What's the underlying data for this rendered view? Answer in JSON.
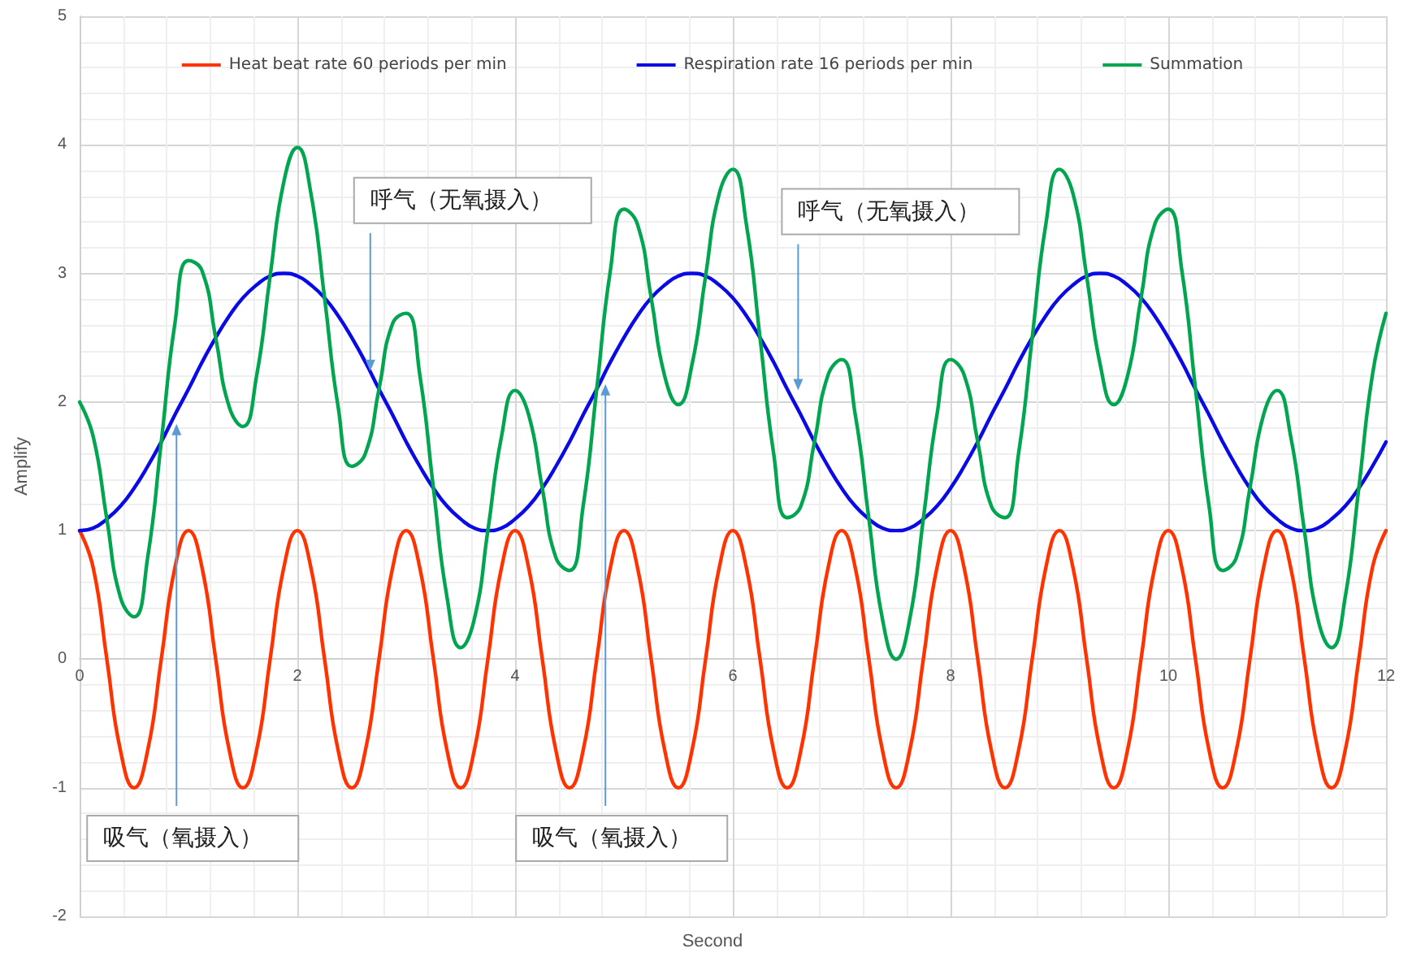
{
  "chart_data": {
    "type": "line",
    "xlabel": "Second",
    "ylabel": "Amplify",
    "x": [
      0,
      0.125,
      0.25,
      0.375,
      0.5,
      0.625,
      0.75,
      0.875,
      1,
      1.125,
      1.25,
      1.375,
      1.5,
      1.625,
      1.75,
      1.875,
      2,
      2.125,
      2.25,
      2.375,
      2.5,
      2.625,
      2.75,
      2.875,
      3,
      3.125,
      3.25,
      3.375,
      3.5,
      3.625,
      3.75,
      3.875,
      4,
      4.125,
      4.25,
      4.375,
      4.5,
      4.625,
      4.75,
      4.875,
      5,
      5.125,
      5.25,
      5.375,
      5.5,
      5.625,
      5.75,
      5.875,
      6,
      6.125,
      6.25,
      6.375,
      6.5,
      6.625,
      6.75,
      6.875,
      7,
      7.125,
      7.25,
      7.375,
      7.5,
      7.625,
      7.75,
      7.875,
      8,
      8.125,
      8.25,
      8.375,
      8.5,
      8.625,
      8.75,
      8.875,
      9,
      9.125,
      9.25,
      9.375,
      9.5,
      9.625,
      9.75,
      9.875,
      10,
      10.125,
      10.25,
      10.375,
      10.5,
      10.625,
      10.75,
      10.875,
      11,
      11.125,
      11.25,
      11.375,
      11.5,
      11.625,
      11.75,
      11.875,
      12
    ],
    "series": [
      {
        "name": "Heat beat rate 60 periods per min",
        "color": "#ff3300",
        "values": [
          1,
          0.71,
          0,
          -0.71,
          -1,
          -0.71,
          0,
          0.71,
          1,
          0.71,
          0,
          -0.71,
          -1,
          -0.71,
          0,
          0.71,
          1,
          0.71,
          0,
          -0.71,
          -1,
          -0.71,
          0,
          0.71,
          1,
          0.71,
          0,
          -0.71,
          -1,
          -0.71,
          0,
          0.71,
          1,
          0.71,
          0,
          -0.71,
          -1,
          -0.71,
          0,
          0.71,
          1,
          0.71,
          0,
          -0.71,
          -1,
          -0.71,
          0,
          0.71,
          1,
          0.71,
          0,
          -0.71,
          -1,
          -0.71,
          0,
          0.71,
          1,
          0.71,
          0,
          -0.71,
          -1,
          -0.71,
          0,
          0.71,
          1,
          0.71,
          0,
          -0.71,
          -1,
          -0.71,
          0,
          0.71,
          1,
          0.71,
          0,
          -0.71,
          -1,
          -0.71,
          0,
          0.71,
          1,
          0.71,
          0,
          -0.71,
          -1,
          -0.71,
          0,
          0.71,
          1,
          0.71,
          0,
          -0.71,
          -1,
          -0.71,
          0,
          0.71,
          1
        ]
      },
      {
        "name": "Respiration rate 16 periods per min",
        "color": "#0a0ae6",
        "values": [
          1,
          1.02,
          1.09,
          1.19,
          1.33,
          1.5,
          1.69,
          1.9,
          2.1,
          2.31,
          2.5,
          2.67,
          2.81,
          2.91,
          2.98,
          3,
          2.98,
          2.91,
          2.81,
          2.67,
          2.5,
          2.31,
          2.1,
          1.9,
          1.69,
          1.5,
          1.33,
          1.19,
          1.09,
          1.02,
          1,
          1.02,
          1.09,
          1.19,
          1.33,
          1.5,
          1.69,
          1.9,
          2.1,
          2.31,
          2.5,
          2.67,
          2.81,
          2.91,
          2.98,
          3,
          2.98,
          2.91,
          2.81,
          2.67,
          2.5,
          2.31,
          2.1,
          1.9,
          1.69,
          1.5,
          1.33,
          1.19,
          1.09,
          1.02,
          1,
          1.02,
          1.09,
          1.19,
          1.33,
          1.5,
          1.69,
          1.9,
          2.1,
          2.31,
          2.5,
          2.67,
          2.81,
          2.91,
          2.98,
          3,
          2.98,
          2.91,
          2.81,
          2.67,
          2.5,
          2.31,
          2.1,
          1.9,
          1.69,
          1.5,
          1.33,
          1.19,
          1.09,
          1.02,
          1,
          1.02,
          1.09,
          1.19,
          1.33,
          1.5,
          1.69
        ]
      },
      {
        "name": "Summation",
        "color": "#00a550",
        "values": [
          2,
          1.73,
          1.09,
          0.48,
          0.33,
          0.79,
          1.69,
          2.61,
          3.1,
          3.02,
          2.5,
          1.96,
          1.81,
          2.2,
          2.98,
          3.71,
          3.98,
          3.62,
          2.81,
          1.96,
          1.5,
          1.6,
          2.1,
          2.61,
          2.69,
          2.21,
          1.33,
          0.48,
          0.09,
          0.31,
          1,
          1.73,
          2.09,
          1.9,
          1.33,
          0.79,
          0.69,
          1.19,
          2.1,
          3.02,
          3.5,
          3.38,
          2.81,
          2.2,
          1.98,
          2.29,
          2.98,
          3.62,
          3.81,
          3.38,
          2.5,
          1.6,
          1.1,
          1.19,
          1.69,
          2.21,
          2.33,
          1.9,
          1.09,
          0.31,
          0,
          0.31,
          1.09,
          1.9,
          2.33,
          2.21,
          1.69,
          1.19,
          1.1,
          1.6,
          2.5,
          3.38,
          3.81,
          3.62,
          2.98,
          2.29,
          1.98,
          2.2,
          2.81,
          3.38,
          3.5,
          3.02,
          2.1,
          1.19,
          0.69,
          0.79,
          1.33,
          1.9,
          2.09,
          1.73,
          1,
          0.31,
          0.09,
          0.48,
          1.33,
          2.21,
          2.69
        ]
      }
    ],
    "annotations": [
      {
        "text": "吸气（氧摄入）",
        "x": 0.89,
        "y": 1.83
      },
      {
        "text": "呼气（无氧摄入）",
        "x": 2.67,
        "y": 2.24
      },
      {
        "text": "吸气（氧摄入）",
        "x": 4.83,
        "y": 2.14
      },
      {
        "text": "呼气（无氧摄入）",
        "x": 6.6,
        "y": 2.09
      }
    ],
    "xlim": [
      0,
      12
    ],
    "xticks": [
      0,
      2,
      4,
      6,
      8,
      10,
      12
    ],
    "ylim": [
      -2,
      5
    ],
    "yticks": [
      -2,
      -1,
      0,
      1,
      2,
      3,
      4,
      5
    ],
    "grid": true,
    "legend": "top",
    "marker": "none",
    "line_style": "solid"
  }
}
